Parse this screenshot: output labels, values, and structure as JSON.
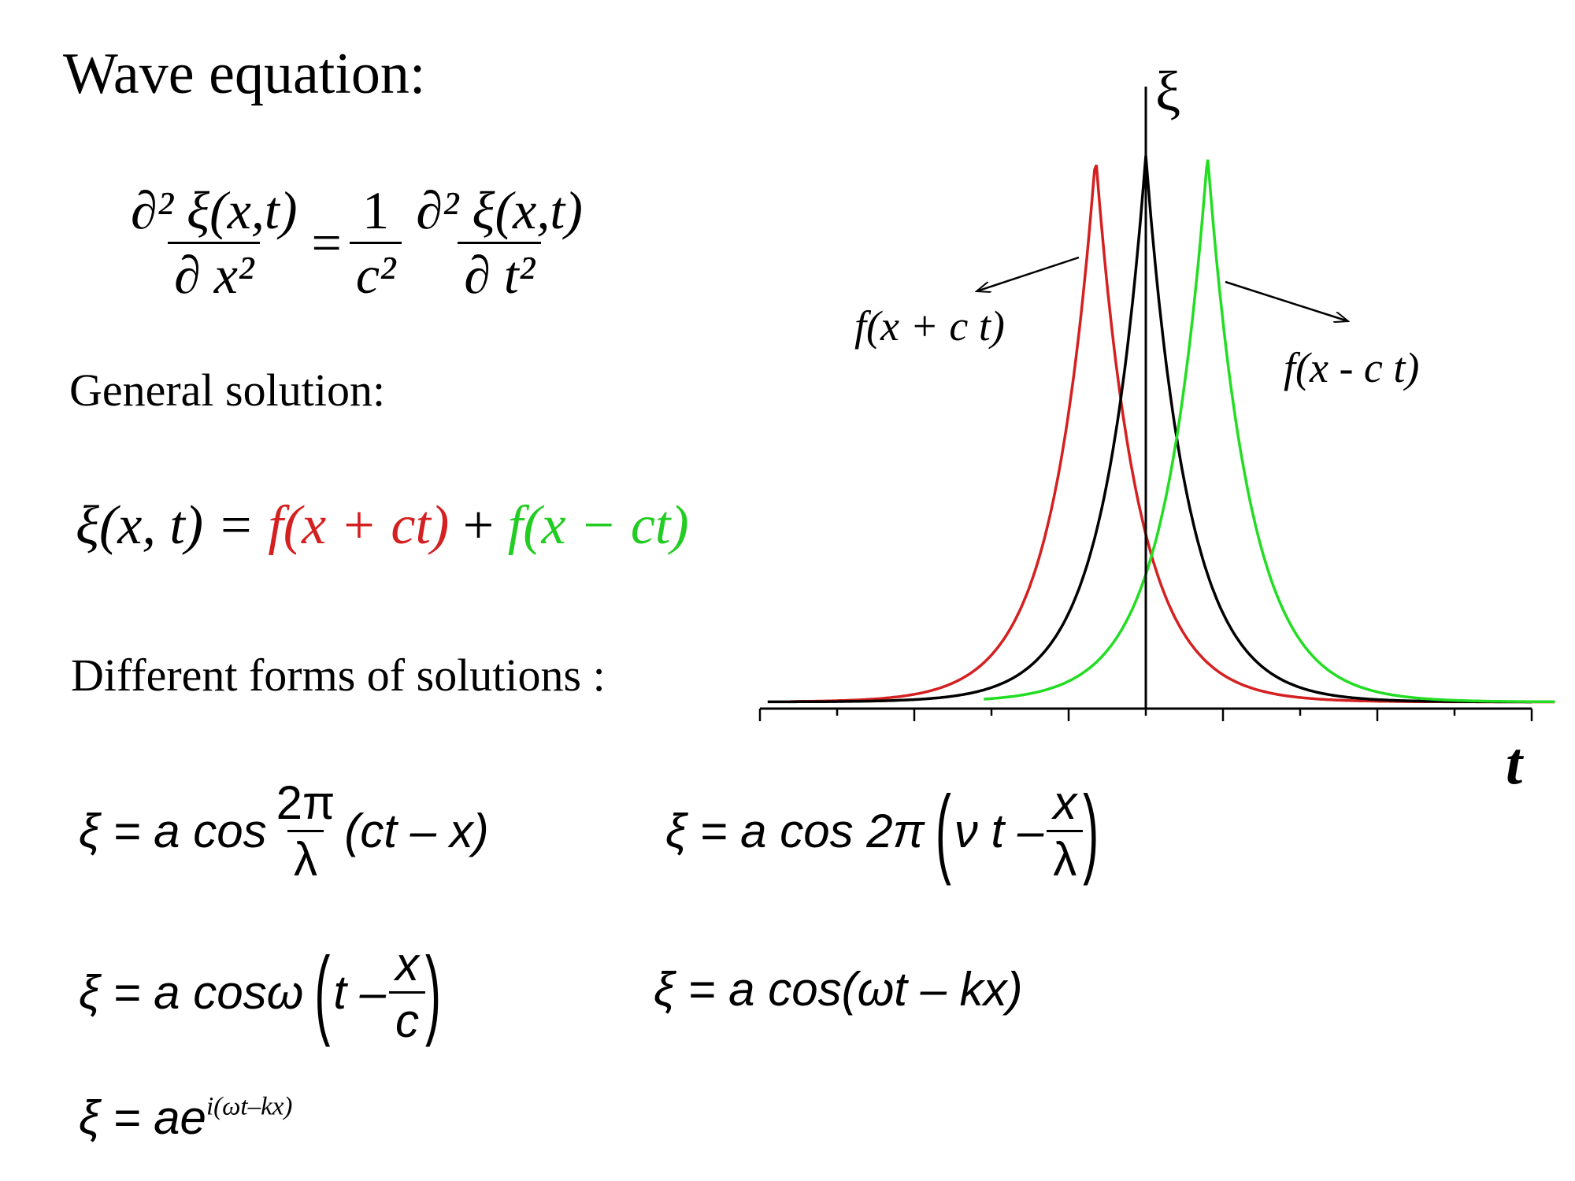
{
  "title": "Wave equation:",
  "wave_eq": {
    "lhs_num": "∂² ξ(x,t)",
    "lhs_den": "∂ x²",
    "eq": "=",
    "coef_num": "1",
    "coef_den": "c²",
    "rhs_num": "∂² ξ(x,t)",
    "rhs_den": "∂ t²"
  },
  "general_label": "General solution:",
  "general": {
    "lhs": "ξ(x, t) = ",
    "term1": "f(x + ct)",
    "plus": " + ",
    "term2": "f(x − ct)",
    "color1": "#d42020",
    "color2": "#22cc22"
  },
  "forms_label": "Different forms of solutions :",
  "forms": {
    "f1_pre": "ξ = a cos",
    "f1_num": "2π",
    "f1_den": "λ",
    "f1_post": "(ct – x)",
    "f2_pre": "ξ = a cos 2π",
    "f2_in": "ν t –",
    "f2_num": "x",
    "f2_den": "λ",
    "f3_pre": "ξ = a cosω",
    "f3_in": "t –",
    "f3_num": "x",
    "f3_den": "c",
    "f4": "ξ = a cos(ωt – kx)",
    "f5_base": "ξ = ae",
    "f5_sup": "i(ωt–kx)"
  },
  "chart_data": {
    "type": "line",
    "xlabel": "t",
    "ylabel": "ξ",
    "xlim": [
      -5,
      5
    ],
    "ylim": [
      0,
      1
    ],
    "ticks": [
      -5,
      -4,
      -3,
      -2,
      -1,
      0,
      1,
      2,
      3,
      4,
      5
    ],
    "series": [
      {
        "name": "f(x + c t)",
        "color": "#d42020",
        "center": -0.65,
        "width": 0.55,
        "x_from": -4.6,
        "x_to": 5.3
      },
      {
        "name": "",
        "color": "#000000",
        "center": 0,
        "width": 0.55,
        "x_from": -4.9,
        "x_to": 5
      },
      {
        "name": "f(x - c t)",
        "color": "#22dd22",
        "center": 0.8,
        "width": 0.55,
        "x_from": -2.1,
        "x_to": 5.3
      }
    ]
  }
}
